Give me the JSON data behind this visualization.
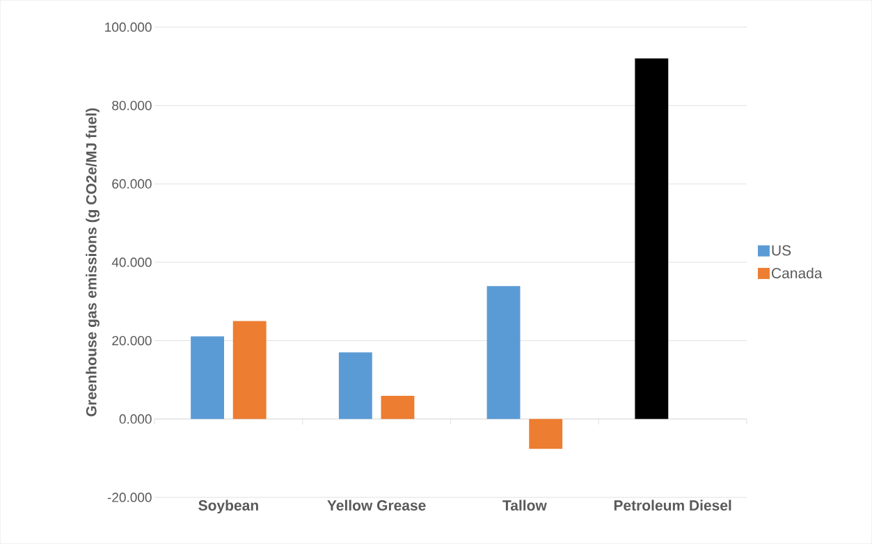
{
  "chart_data": {
    "type": "bar",
    "ylabel": "Greenhouse gas emissions (g CO2e/MJ fuel)",
    "categories": [
      "Soybean",
      "Yellow Grease",
      "Tallow",
      "Petroleum Diesel"
    ],
    "series": [
      {
        "name": "US",
        "color": "#5b9bd5",
        "colors": [
          "#5b9bd5",
          "#5b9bd5",
          "#5b9bd5",
          "#000000"
        ],
        "values": [
          21.1,
          17.0,
          33.9,
          92.0
        ]
      },
      {
        "name": "Canada",
        "color": "#ed7d31",
        "values": [
          25.0,
          5.9,
          -7.6,
          null
        ]
      }
    ],
    "ylim": [
      -20,
      100
    ],
    "yticks": [
      {
        "value": -20,
        "label": "-20.000"
      },
      {
        "value": 0,
        "label": "0.000"
      },
      {
        "value": 20,
        "label": "20.000"
      },
      {
        "value": 40,
        "label": "40.000"
      },
      {
        "value": 60,
        "label": "60.000"
      },
      {
        "value": 80,
        "label": "80.000"
      },
      {
        "value": 100,
        "label": "100.000"
      }
    ],
    "grid": "y",
    "legend": "right"
  }
}
